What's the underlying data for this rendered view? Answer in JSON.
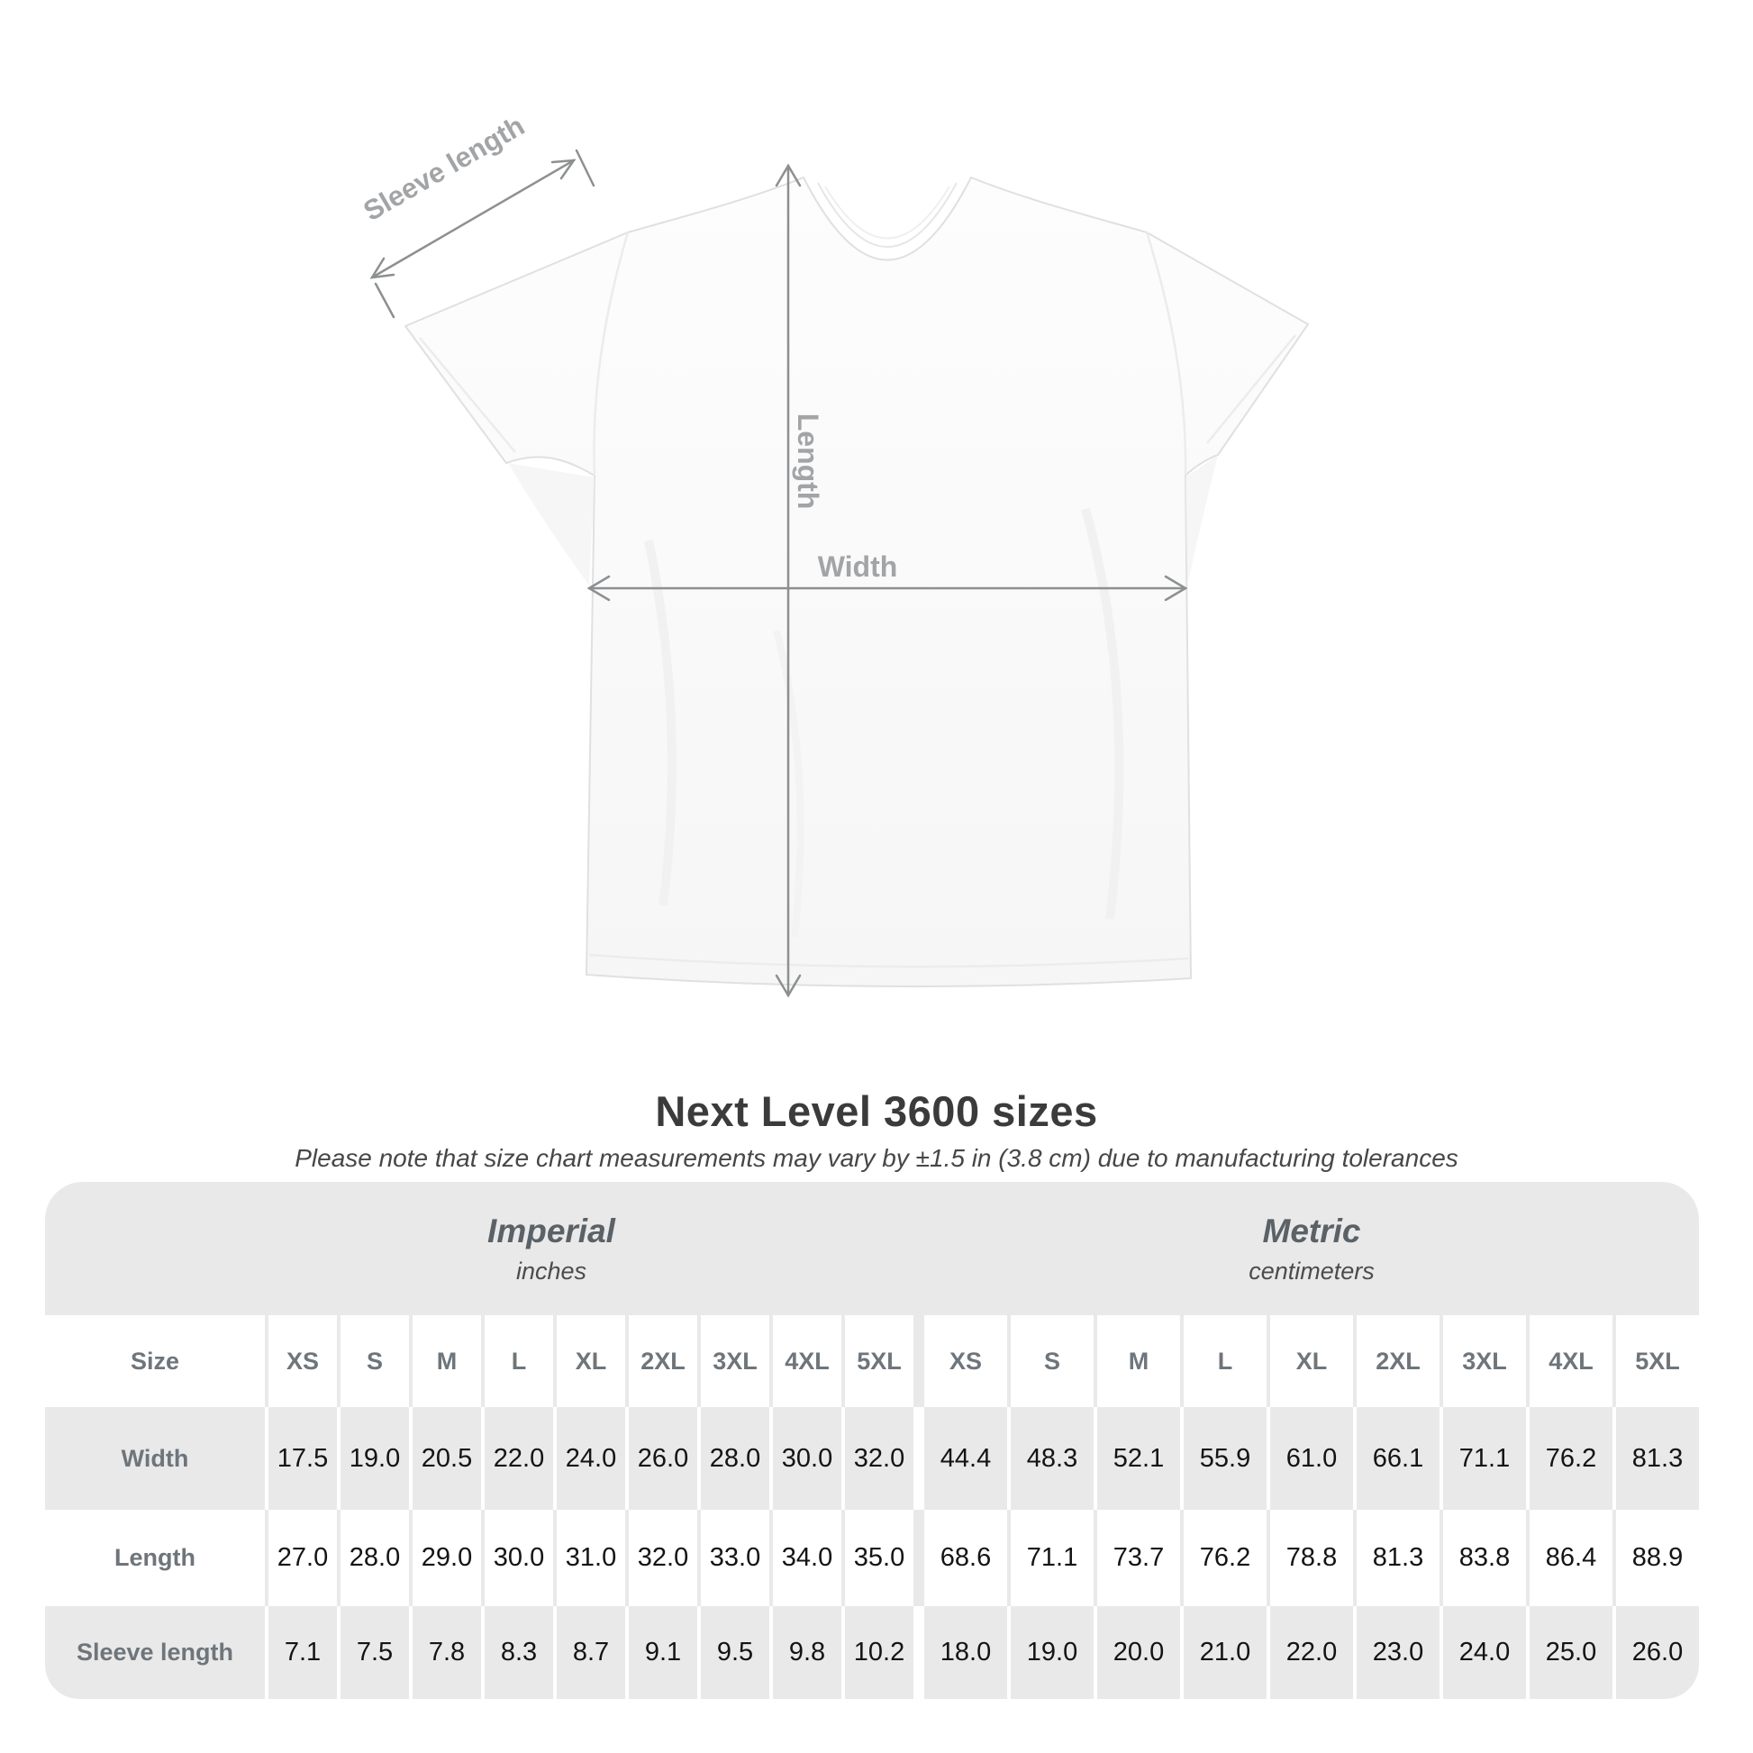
{
  "diagram": {
    "labels": {
      "sleeve_length": "Sleeve length",
      "length": "Length",
      "width": "Width"
    }
  },
  "title": "Next Level 3600 sizes",
  "subtitle": "Please note that size chart measurements may vary by ±1.5 in (3.8 cm) due to manufacturing tolerances",
  "table": {
    "imperial_header": {
      "title": "Imperial",
      "unit": "inches"
    },
    "metric_header": {
      "title": "Metric",
      "unit": "centimeters"
    },
    "size_label": "Size",
    "sizes": [
      "XS",
      "S",
      "M",
      "L",
      "XL",
      "2XL",
      "3XL",
      "4XL",
      "5XL"
    ],
    "rows": [
      {
        "label": "Width",
        "imperial": [
          "17.5",
          "19.0",
          "20.5",
          "22.0",
          "24.0",
          "26.0",
          "28.0",
          "30.0",
          "32.0"
        ],
        "metric": [
          "44.4",
          "48.3",
          "52.1",
          "55.9",
          "61.0",
          "66.1",
          "71.1",
          "76.2",
          "81.3"
        ]
      },
      {
        "label": "Length",
        "imperial": [
          "27.0",
          "28.0",
          "29.0",
          "30.0",
          "31.0",
          "32.0",
          "33.0",
          "34.0",
          "35.0"
        ],
        "metric": [
          "68.6",
          "71.1",
          "73.7",
          "76.2",
          "78.8",
          "81.3",
          "83.8",
          "86.4",
          "88.9"
        ]
      },
      {
        "label": "Sleeve length",
        "imperial": [
          "7.1",
          "7.5",
          "7.8",
          "8.3",
          "8.7",
          "9.1",
          "9.5",
          "9.8",
          "10.2"
        ],
        "metric": [
          "18.0",
          "19.0",
          "20.0",
          "21.0",
          "22.0",
          "23.0",
          "24.0",
          "25.0",
          "26.0"
        ]
      }
    ]
  },
  "colors": {
    "table_band_gray": "#e9e9e9",
    "value_text": "#141414",
    "label_gray": "#6e757b",
    "dimension_line": "#8d8f90",
    "diagram_label_gray": "#a2a4a6",
    "title_text": "#3b3b3b"
  },
  "chart_data": {
    "type": "table",
    "title": "Next Level 3600 sizes",
    "note": "Please note that size chart measurements may vary by ±1.5 in (3.8 cm) due to manufacturing tolerances",
    "column_groups": [
      {
        "name": "Imperial",
        "unit": "inches"
      },
      {
        "name": "Metric",
        "unit": "centimeters"
      }
    ],
    "columns": [
      "XS",
      "S",
      "M",
      "L",
      "XL",
      "2XL",
      "3XL",
      "4XL",
      "5XL"
    ],
    "rows": [
      {
        "label": "Width",
        "imperial_in": [
          17.5,
          19.0,
          20.5,
          22.0,
          24.0,
          26.0,
          28.0,
          30.0,
          32.0
        ],
        "metric_cm": [
          44.4,
          48.3,
          52.1,
          55.9,
          61.0,
          66.1,
          71.1,
          76.2,
          81.3
        ]
      },
      {
        "label": "Length",
        "imperial_in": [
          27.0,
          28.0,
          29.0,
          30.0,
          31.0,
          32.0,
          33.0,
          34.0,
          35.0
        ],
        "metric_cm": [
          68.6,
          71.1,
          73.7,
          76.2,
          78.8,
          81.3,
          83.8,
          86.4,
          88.9
        ]
      },
      {
        "label": "Sleeve length",
        "imperial_in": [
          7.1,
          7.5,
          7.8,
          8.3,
          8.7,
          9.1,
          9.5,
          9.8,
          10.2
        ],
        "metric_cm": [
          18.0,
          19.0,
          20.0,
          21.0,
          22.0,
          23.0,
          24.0,
          25.0,
          26.0
        ]
      }
    ]
  }
}
